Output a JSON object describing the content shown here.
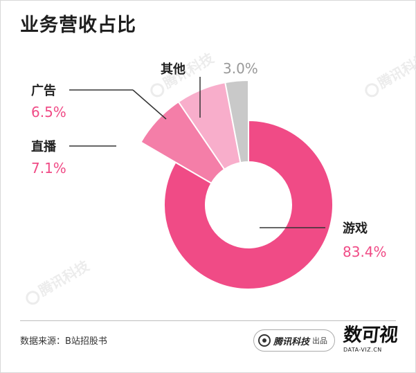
{
  "title": "业务营收占比",
  "source": "数据来源：B站招股书",
  "badge": {
    "brand": "腾讯科技",
    "suffix": "出品"
  },
  "logo": {
    "main": "数可视",
    "sub": "DATA-VIZ.CN"
  },
  "watermark": "腾讯科技",
  "colors": {
    "游戏": "#f04b86",
    "直播": "#f47ea8",
    "广告": "#f8aecb",
    "其他": "#c9c9c9",
    "value_pink": "#f04b86",
    "value_gray": "#999999"
  },
  "chart_data": {
    "type": "pie",
    "title": "业务营收占比",
    "donut": true,
    "labels": [
      "游戏",
      "直播",
      "广告",
      "其他"
    ],
    "values": [
      83.4,
      7.1,
      6.5,
      3.0
    ],
    "value_labels": [
      "83.4%",
      "7.1%",
      "6.5%",
      "3.0%"
    ]
  }
}
